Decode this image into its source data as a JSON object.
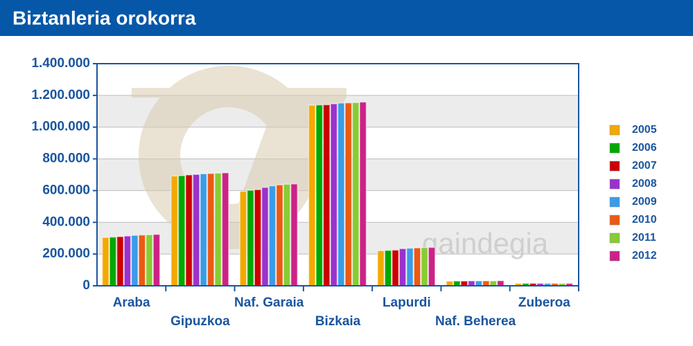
{
  "chart_data": {
    "type": "bar",
    "title": "Biztanleria orokorra",
    "watermark": "gaindegia",
    "categories": [
      "Araba",
      "Gipuzkoa",
      "Naf. Garaia",
      "Bizkaia",
      "Lapurdi",
      "Naf. Beherea",
      "Zuberoa"
    ],
    "series": [
      {
        "name": "2005",
        "color": "#f2a900",
        "values": [
          305000,
          692000,
          595000,
          1138000,
          221000,
          29000,
          15000
        ]
      },
      {
        "name": "2006",
        "color": "#00a800",
        "values": [
          307000,
          694000,
          602000,
          1140000,
          223000,
          30000,
          15000
        ]
      },
      {
        "name": "2007",
        "color": "#cc0000",
        "values": [
          310000,
          699000,
          606000,
          1141000,
          225000,
          30000,
          15000
        ]
      },
      {
        "name": "2008",
        "color": "#9a32cd",
        "values": [
          314000,
          702000,
          620000,
          1147000,
          234000,
          31000,
          15000
        ]
      },
      {
        "name": "2009",
        "color": "#3a9ce8",
        "values": [
          318000,
          706000,
          630000,
          1152000,
          237000,
          31000,
          15000
        ]
      },
      {
        "name": "2010",
        "color": "#ec5a12",
        "values": [
          320000,
          708000,
          636000,
          1153000,
          239000,
          31000,
          15000
        ]
      },
      {
        "name": "2011",
        "color": "#88cc33",
        "values": [
          322000,
          710000,
          640000,
          1155000,
          241000,
          31000,
          15000
        ]
      },
      {
        "name": "2012",
        "color": "#cc2288",
        "values": [
          324000,
          712000,
          642000,
          1158000,
          242000,
          32000,
          15000
        ]
      }
    ],
    "ylim": [
      0,
      1400000
    ],
    "yticks": [
      0,
      {
        "value": 200000,
        "label": "200.000"
      },
      {
        "value": 400000,
        "label": "400.000"
      },
      {
        "value": 600000,
        "label": "600.000"
      },
      {
        "value": 800000,
        "label": "800.000"
      },
      {
        "value": 1000000,
        "label": "1.000.000"
      },
      {
        "value": 1200000,
        "label": "1.200.000"
      },
      {
        "value": 1400000,
        "label": "1.400.000"
      }
    ],
    "grid": true,
    "legend": "right"
  }
}
